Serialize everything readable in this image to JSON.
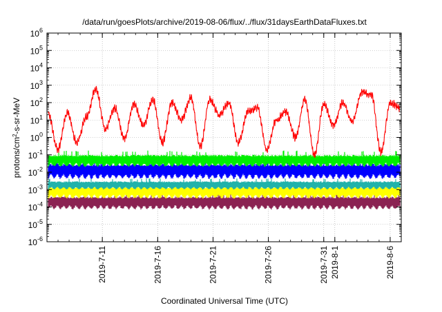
{
  "chart_data": {
    "type": "line",
    "title": "/data/run/goesPlots/archive/2019-08-06/flux/../flux/31daysEarthDataFluxes.txt",
    "xlabel": "Coordinated Universal Time (UTC)",
    "ylabel": "protons/cm²-s-sr-MeV",
    "ylabel_parts": {
      "base": "protons/cm",
      "sup": "2",
      "rest": "-s-sr-MeV"
    },
    "yscale": "log",
    "ylim": [
      1e-06,
      1000000.0
    ],
    "ytick_labels": [
      {
        "base": "10",
        "exp": "-6"
      },
      {
        "base": "10",
        "exp": "-5"
      },
      {
        "base": "10",
        "exp": "-4"
      },
      {
        "base": "10",
        "exp": "-3"
      },
      {
        "base": "10",
        "exp": "-2"
      },
      {
        "base": "10",
        "exp": "-1"
      },
      {
        "base": "10",
        "exp": "0"
      },
      {
        "base": "10",
        "exp": "1"
      },
      {
        "base": "10",
        "exp": "2"
      },
      {
        "base": "10",
        "exp": "3"
      },
      {
        "base": "10",
        "exp": "4"
      },
      {
        "base": "10",
        "exp": "5"
      },
      {
        "base": "10",
        "exp": "6"
      }
    ],
    "xlim": [
      "2019-07-06",
      "2019-08-07"
    ],
    "xtick_labels": [
      "2019-7-11",
      "2019-7-16",
      "2019-7-21",
      "2019-7-26",
      "2019-7-31",
      "2019-8-1",
      "2019-8-6"
    ],
    "xtick_dates": [
      "2019-07-11",
      "2019-07-16",
      "2019-07-21",
      "2019-07-26",
      "2019-07-31",
      "2019-08-01",
      "2019-08-06"
    ],
    "grid": true,
    "legend": "none",
    "series": [
      {
        "color": "#ff0000",
        "daily_values": [
          20,
          0.2,
          25,
          0.5,
          15,
          600,
          3,
          50,
          0.8,
          80,
          5,
          150,
          0.5,
          100,
          10,
          200,
          0.3,
          150,
          20,
          100,
          0.5,
          30,
          50,
          0.2,
          10,
          30,
          1,
          150,
          0.1,
          80,
          5,
          100,
          8,
          400,
          300,
          0.15,
          100,
          50
        ]
      },
      {
        "color": "#00ee00",
        "band": [
          0.02,
          0.1
        ]
      },
      {
        "color": "#0000ff",
        "band": [
          0.004,
          0.03
        ]
      },
      {
        "color": "#20b2aa",
        "band": [
          0.001,
          0.003
        ]
      },
      {
        "color": "#ffff00",
        "band": [
          0.0003,
          0.0015
        ]
      },
      {
        "color": "#8b2252",
        "band": [
          7e-05,
          0.0004
        ]
      }
    ]
  }
}
